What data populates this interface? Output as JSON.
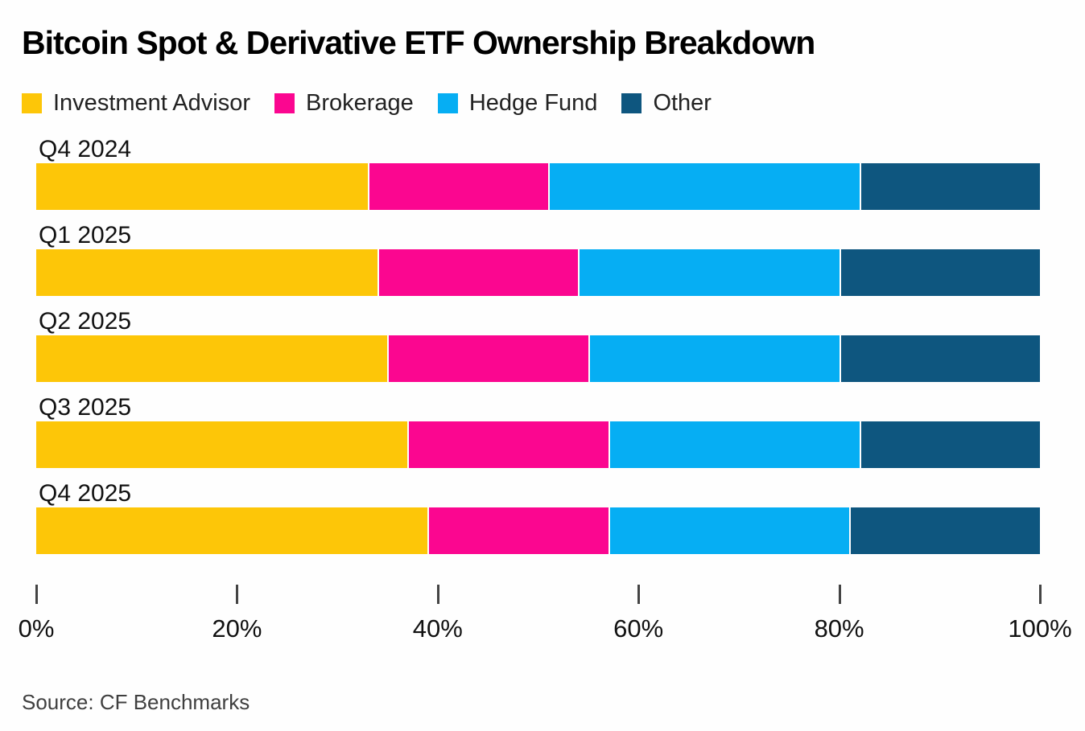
{
  "title": "Bitcoin Spot & Derivative ETF Ownership Breakdown",
  "source": "Source: CF Benchmarks",
  "colors": {
    "background": "#FEFEFE",
    "title_text": "#000000",
    "axis_tick": "#444444",
    "source_text": "#3F3F3F",
    "investment_advisor": "#FDC608",
    "brokerage": "#FB0690",
    "hedge_fund": "#06AEF3",
    "other": "#0E567F"
  },
  "chart_data": {
    "type": "bar",
    "stacked": true,
    "orientation": "horizontal",
    "title": "Bitcoin Spot & Derivative ETF Ownership Breakdown",
    "categories": [
      "Q4 2024",
      "Q1 2025",
      "Q2 2025",
      "Q3 2025",
      "Q4 2025"
    ],
    "series": [
      {
        "name": "Investment Advisor",
        "color": "#FDC608",
        "values": [
          33,
          34,
          35,
          37,
          39
        ]
      },
      {
        "name": "Brokerage",
        "color": "#FB0690",
        "values": [
          18,
          20,
          20,
          20,
          18
        ]
      },
      {
        "name": "Hedge Fund",
        "color": "#06AEF3",
        "values": [
          31,
          26,
          25,
          25,
          24
        ]
      },
      {
        "name": "Other",
        "color": "#0E567F",
        "values": [
          18,
          20,
          20,
          18,
          19
        ]
      }
    ],
    "value_unit": "%",
    "xlim": [
      0,
      100
    ],
    "x_tick_positions": [
      0,
      20,
      40,
      60,
      80,
      100
    ],
    "x_tick_labels": [
      "0%",
      "20%",
      "40%",
      "60%",
      "80%",
      "100%"
    ],
    "legend_position": "top",
    "grid": false,
    "source_note": "Source: CF Benchmarks"
  }
}
